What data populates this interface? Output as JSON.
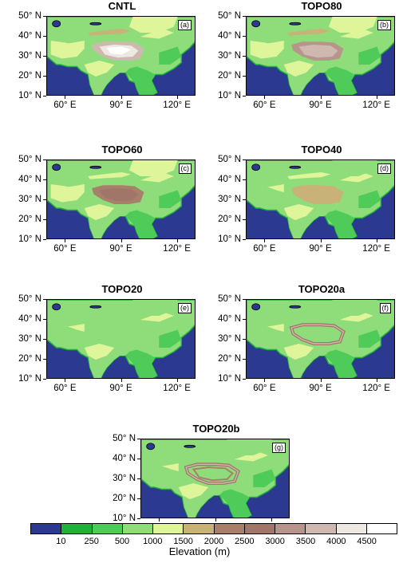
{
  "panels": [
    {
      "title": "CNTL",
      "label": "(a)",
      "topo": 1.0,
      "style": "normal"
    },
    {
      "title": "TOPO80",
      "label": "(b)",
      "topo": 0.8,
      "style": "normal"
    },
    {
      "title": "TOPO60",
      "label": "(c)",
      "topo": 0.6,
      "style": "normal"
    },
    {
      "title": "TOPO40",
      "label": "(d)",
      "topo": 0.4,
      "style": "normal"
    },
    {
      "title": "TOPO20",
      "label": "(e)",
      "topo": 0.2,
      "style": "normal"
    },
    {
      "title": "TOPO20a",
      "label": "(f)",
      "topo": 0.2,
      "style": "rim"
    },
    {
      "title": "TOPO20b",
      "label": "(g)",
      "topo": 0.2,
      "style": "rimb"
    }
  ],
  "axes": {
    "y_ticks": [
      "50° N",
      "40° N",
      "30° N",
      "20° N",
      "10° N"
    ],
    "x_ticks": [
      "60° E",
      "90° E",
      "120° E"
    ]
  },
  "colorbar": {
    "title": "Elevation (m)",
    "labels": [
      "10",
      "250",
      "500",
      "1000",
      "1500",
      "2000",
      "2500",
      "3000",
      "3500",
      "4000",
      "4500"
    ],
    "colors": [
      "#2b3990",
      "#1fb13a",
      "#4fcb5a",
      "#8fdd7a",
      "#dff59a",
      "#c8b278",
      "#a8806a",
      "#a07668",
      "#b8958a",
      "#cfb8b0",
      "#ede8e2",
      "#ffffff"
    ]
  }
}
